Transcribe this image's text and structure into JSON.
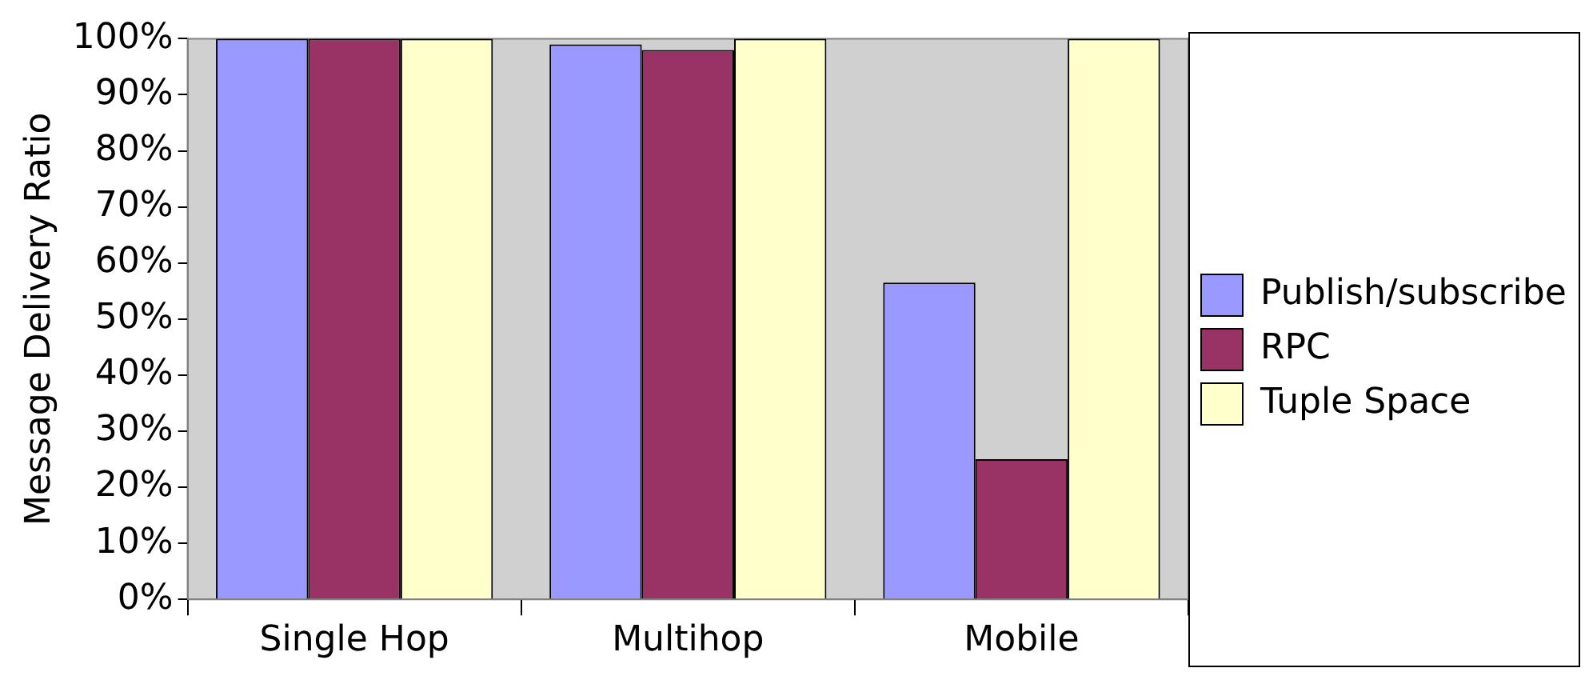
{
  "chart_data": {
    "type": "bar",
    "ylabel": "Message Delivery Ratio",
    "categories": [
      "Single Hop",
      "Multihop",
      "Mobile"
    ],
    "series": [
      {
        "name": "Publish/subscribe",
        "color": "#9999ff",
        "values": [
          100,
          99,
          56.5
        ]
      },
      {
        "name": "RPC",
        "color": "#993366",
        "values": [
          100,
          98,
          25
        ]
      },
      {
        "name": "Tuple Space",
        "color": "#ffffcc",
        "values": [
          100,
          100,
          100
        ]
      }
    ],
    "ylim": [
      0,
      100
    ],
    "yticks": [
      {
        "value": 0,
        "label": "0%"
      },
      {
        "value": 10,
        "label": "10%"
      },
      {
        "value": 20,
        "label": "20%"
      },
      {
        "value": 30,
        "label": "30%"
      },
      {
        "value": 40,
        "label": "40%"
      },
      {
        "value": 50,
        "label": "50%"
      },
      {
        "value": 60,
        "label": "60%"
      },
      {
        "value": 70,
        "label": "70%"
      },
      {
        "value": 80,
        "label": "80%"
      },
      {
        "value": 90,
        "label": "90%"
      },
      {
        "value": 100,
        "label": "100%"
      }
    ],
    "grid": false,
    "legend": "right"
  }
}
